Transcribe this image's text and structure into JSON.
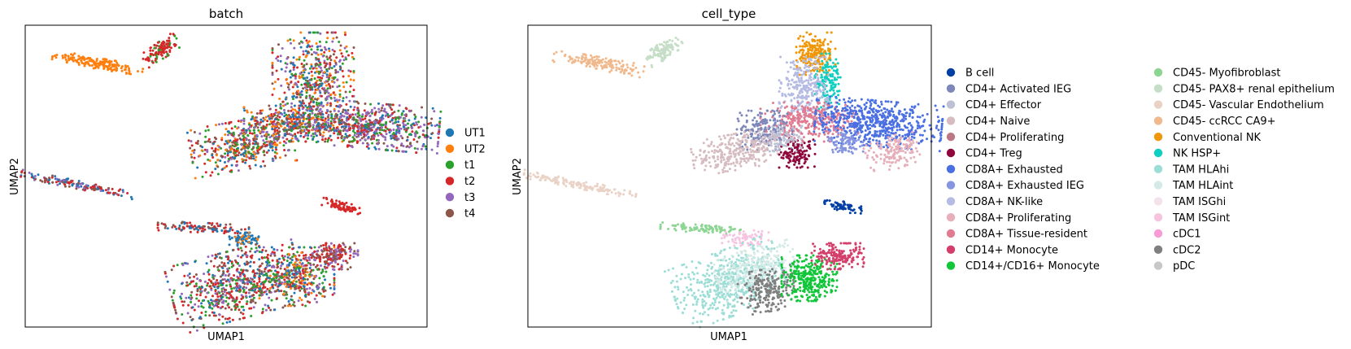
{
  "chart_data": [
    {
      "type": "scatter",
      "title": "batch",
      "xlabel": "UMAP1",
      "ylabel": "UMAP2",
      "xticks": false,
      "yticks": false,
      "legend_position": "right",
      "legend": [
        {
          "name": "UT1",
          "color": "#1f77b4"
        },
        {
          "name": "UT2",
          "color": "#ff7f0e"
        },
        {
          "name": "t1",
          "color": "#2ca02c"
        },
        {
          "name": "t2",
          "color": "#d62728"
        },
        {
          "name": "t3",
          "color": "#9467bd"
        },
        {
          "name": "t4",
          "color": "#8c564b"
        }
      ]
    },
    {
      "type": "scatter",
      "title": "cell_type",
      "xlabel": "UMAP1",
      "ylabel": "UMAP2",
      "xticks": false,
      "yticks": false,
      "legend_position": "right",
      "legend": [
        {
          "name": "B cell",
          "color": "#023fa5"
        },
        {
          "name": "CD4+ Activated IEG",
          "color": "#7d87b9"
        },
        {
          "name": "CD4+ Effector",
          "color": "#bec1d4"
        },
        {
          "name": "CD4+ Naive",
          "color": "#d6bcc0"
        },
        {
          "name": "CD4+ Proliferating",
          "color": "#bb7784"
        },
        {
          "name": "CD4+ Treg",
          "color": "#8e063b"
        },
        {
          "name": "CD8A+ Exhausted",
          "color": "#4a6fe3"
        },
        {
          "name": "CD8A+ Exhausted IEG",
          "color": "#8595e1"
        },
        {
          "name": "CD8A+ NK-like",
          "color": "#b5bbe3"
        },
        {
          "name": "CD8A+ Proliferating",
          "color": "#e6afb9"
        },
        {
          "name": "CD8A+ Tissue-resident",
          "color": "#e07b91"
        },
        {
          "name": "CD14+ Monocyte",
          "color": "#d33f6a"
        },
        {
          "name": "CD14+/CD16+ Monocyte",
          "color": "#11c638"
        },
        {
          "name": "CD45- Myofibroblast",
          "color": "#8dd593"
        },
        {
          "name": "CD45- PAX8+ renal epithelium",
          "color": "#c6dec7"
        },
        {
          "name": "CD45- Vascular Endothelium",
          "color": "#ead3c6"
        },
        {
          "name": "CD45- ccRCC CA9+",
          "color": "#f0b98d"
        },
        {
          "name": "Conventional NK",
          "color": "#ef9708"
        },
        {
          "name": "NK HSP+",
          "color": "#0fcfc0"
        },
        {
          "name": "TAM HLAhi",
          "color": "#9cded6"
        },
        {
          "name": "TAM HLAint",
          "color": "#d5eae7"
        },
        {
          "name": "TAM ISGhi",
          "color": "#f3e1eb"
        },
        {
          "name": "TAM ISGint",
          "color": "#f6c4e1"
        },
        {
          "name": "cDC1",
          "color": "#f79cd4"
        },
        {
          "name": "cDC2",
          "color": "#7f7f7f"
        },
        {
          "name": "pDC",
          "color": "#c7c7c7"
        }
      ]
    }
  ]
}
